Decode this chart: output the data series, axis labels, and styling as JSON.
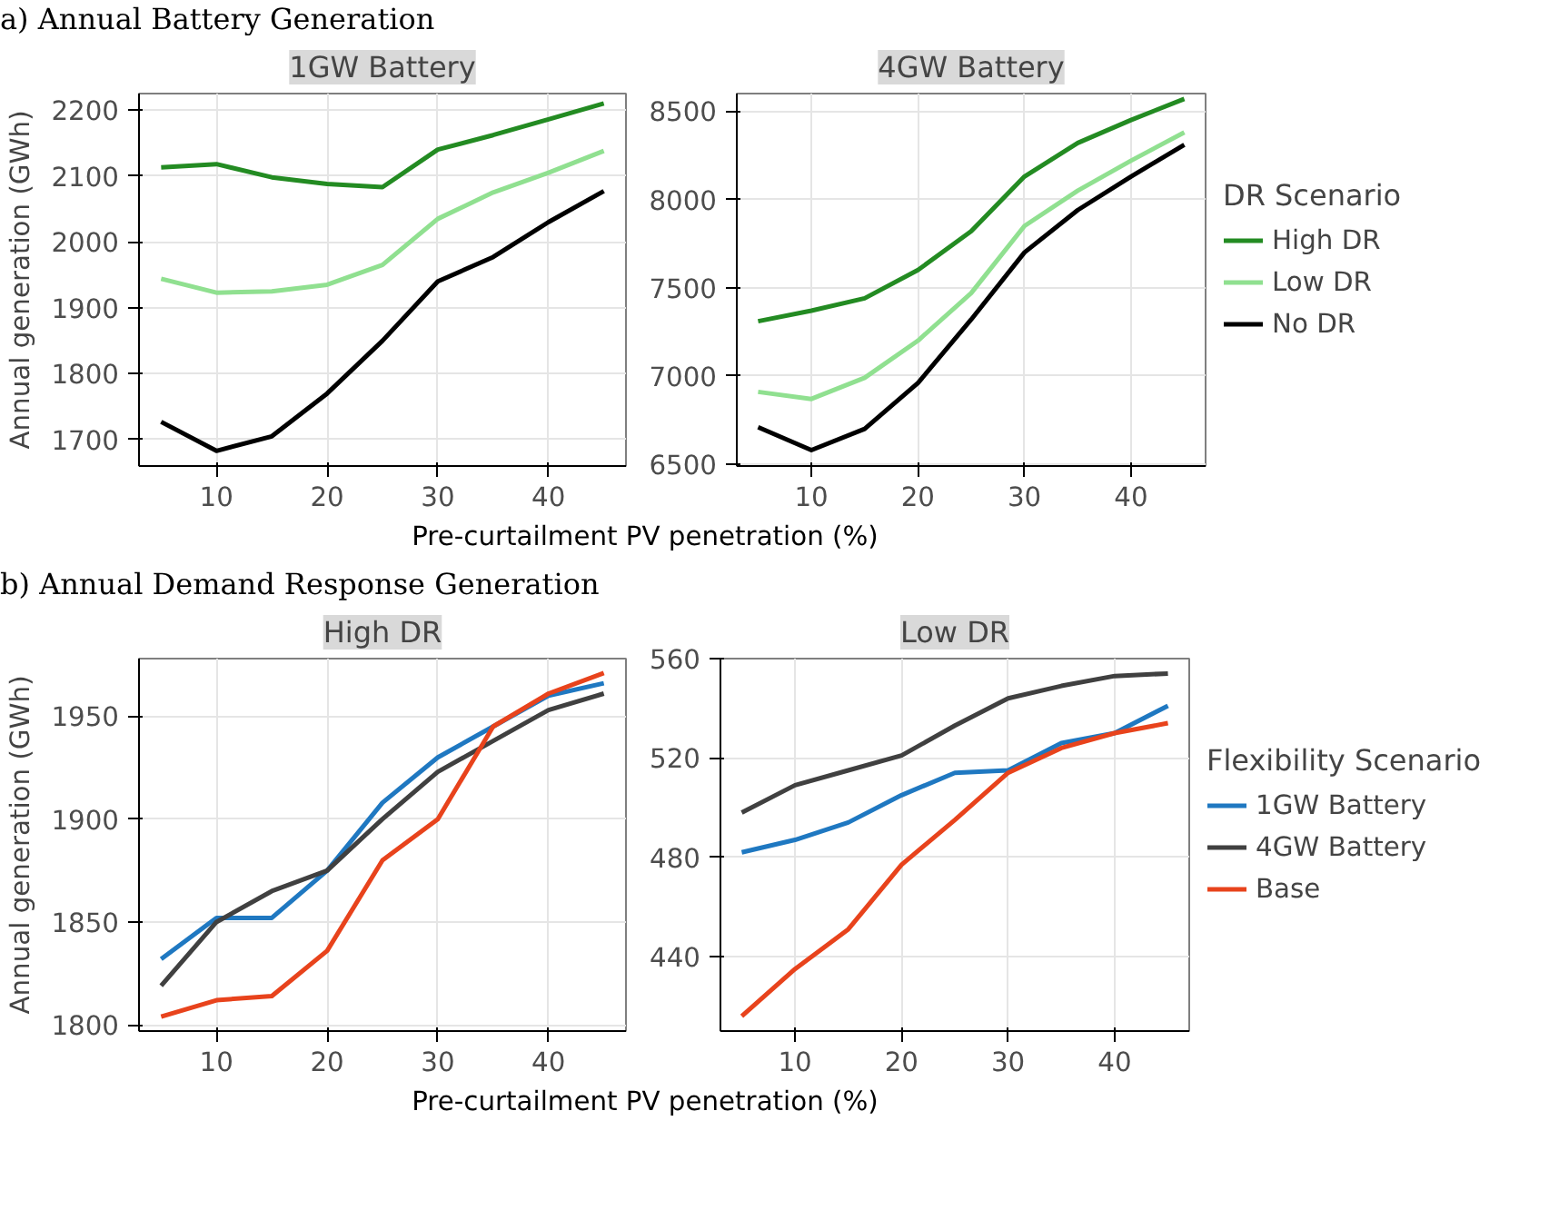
{
  "chart_data": [
    {
      "type": "line",
      "title": "1GW Battery",
      "annotations": [
        "a) Annual Battery Generation"
      ],
      "xlabel": "Pre-curtailment PV penetration (%)",
      "ylabel": "Annual generation (GWh)",
      "x": [
        5,
        10,
        15,
        20,
        25,
        30,
        35,
        40,
        45
      ],
      "xlim": [
        3,
        47
      ],
      "xticks": [
        10,
        20,
        30,
        40
      ],
      "ylim": [
        1660,
        2225
      ],
      "yticks": [
        1700,
        1800,
        1900,
        2000,
        2100,
        2200
      ],
      "grid": true,
      "series": [
        {
          "color": "#238b22",
          "values": [
            2113,
            2118,
            2098,
            2088,
            2083,
            2140,
            2162,
            2186,
            2210
          ]
        },
        {
          "color": "#90e090",
          "values": [
            1944,
            1923,
            1925,
            1935,
            1965,
            2035,
            2075,
            2105,
            2138
          ]
        },
        {
          "color": "#000000",
          "values": [
            1727,
            1683,
            1705,
            1770,
            1850,
            1940,
            1977,
            2030,
            2077
          ]
        }
      ]
    },
    {
      "type": "line",
      "title": "4GW Battery",
      "legend_title": "DR Scenario",
      "x": [
        5,
        10,
        15,
        20,
        25,
        30,
        35,
        40,
        45
      ],
      "xlim": [
        3,
        47
      ],
      "xticks": [
        10,
        20,
        30,
        40
      ],
      "ylim": [
        6490,
        8600
      ],
      "yticks": [
        6500,
        7000,
        7500,
        8000,
        8500
      ],
      "grid": true,
      "legend": "right",
      "series": [
        {
          "name": "High DR",
          "color": "#238b22",
          "values": [
            7310,
            7370,
            7440,
            7600,
            7820,
            8130,
            8320,
            8450,
            8570
          ]
        },
        {
          "name": "Low DR",
          "color": "#90e090",
          "values": [
            6910,
            6870,
            6990,
            7200,
            7470,
            7850,
            8050,
            8220,
            8380
          ]
        },
        {
          "name": "No DR",
          "color": "#000000",
          "values": [
            6710,
            6580,
            6700,
            6960,
            7320,
            7700,
            7940,
            8130,
            8310
          ]
        }
      ]
    },
    {
      "type": "line",
      "title": "High DR",
      "annotations": [
        "b) Annual Demand Response Generation"
      ],
      "xlabel": "Pre-curtailment PV penetration (%)",
      "ylabel": "Annual generation (GWh)",
      "x": [
        5,
        10,
        15,
        20,
        25,
        30,
        35,
        40,
        45
      ],
      "xlim": [
        3,
        47
      ],
      "xticks": [
        10,
        20,
        30,
        40
      ],
      "ylim": [
        1797,
        1978
      ],
      "yticks": [
        1800,
        1850,
        1900,
        1950
      ],
      "grid": true,
      "series": [
        {
          "color": "#1f78c1",
          "values": [
            1832,
            1852,
            1852,
            1875,
            1908,
            1930,
            1945,
            1960,
            1966
          ]
        },
        {
          "color": "#404040",
          "values": [
            1819,
            1850,
            1865,
            1875,
            1900,
            1923,
            1938,
            1953,
            1961
          ]
        },
        {
          "color": "#e8431c",
          "values": [
            1804,
            1812,
            1814,
            1836,
            1880,
            1900,
            1945,
            1961,
            1971
          ]
        }
      ]
    },
    {
      "type": "line",
      "title": "Low DR",
      "legend_title": "Flexibility Scenario",
      "x": [
        5,
        10,
        15,
        20,
        25,
        30,
        35,
        40,
        45
      ],
      "xlim": [
        3,
        47
      ],
      "xticks": [
        10,
        20,
        30,
        40
      ],
      "ylim": [
        410,
        560
      ],
      "yticks": [
        440,
        480,
        520,
        560
      ],
      "grid": true,
      "legend": "right",
      "series": [
        {
          "name": "1GW Battery",
          "color": "#1f78c1",
          "values": [
            482,
            487,
            494,
            505,
            514,
            515,
            526,
            530,
            541
          ]
        },
        {
          "name": "4GW Battery",
          "color": "#404040",
          "values": [
            498,
            509,
            515,
            521,
            533,
            544,
            549,
            553,
            554
          ]
        },
        {
          "name": "Base",
          "color": "#e8431c",
          "values": [
            416,
            435,
            451,
            477,
            495,
            514,
            524,
            530,
            534
          ]
        }
      ]
    }
  ]
}
